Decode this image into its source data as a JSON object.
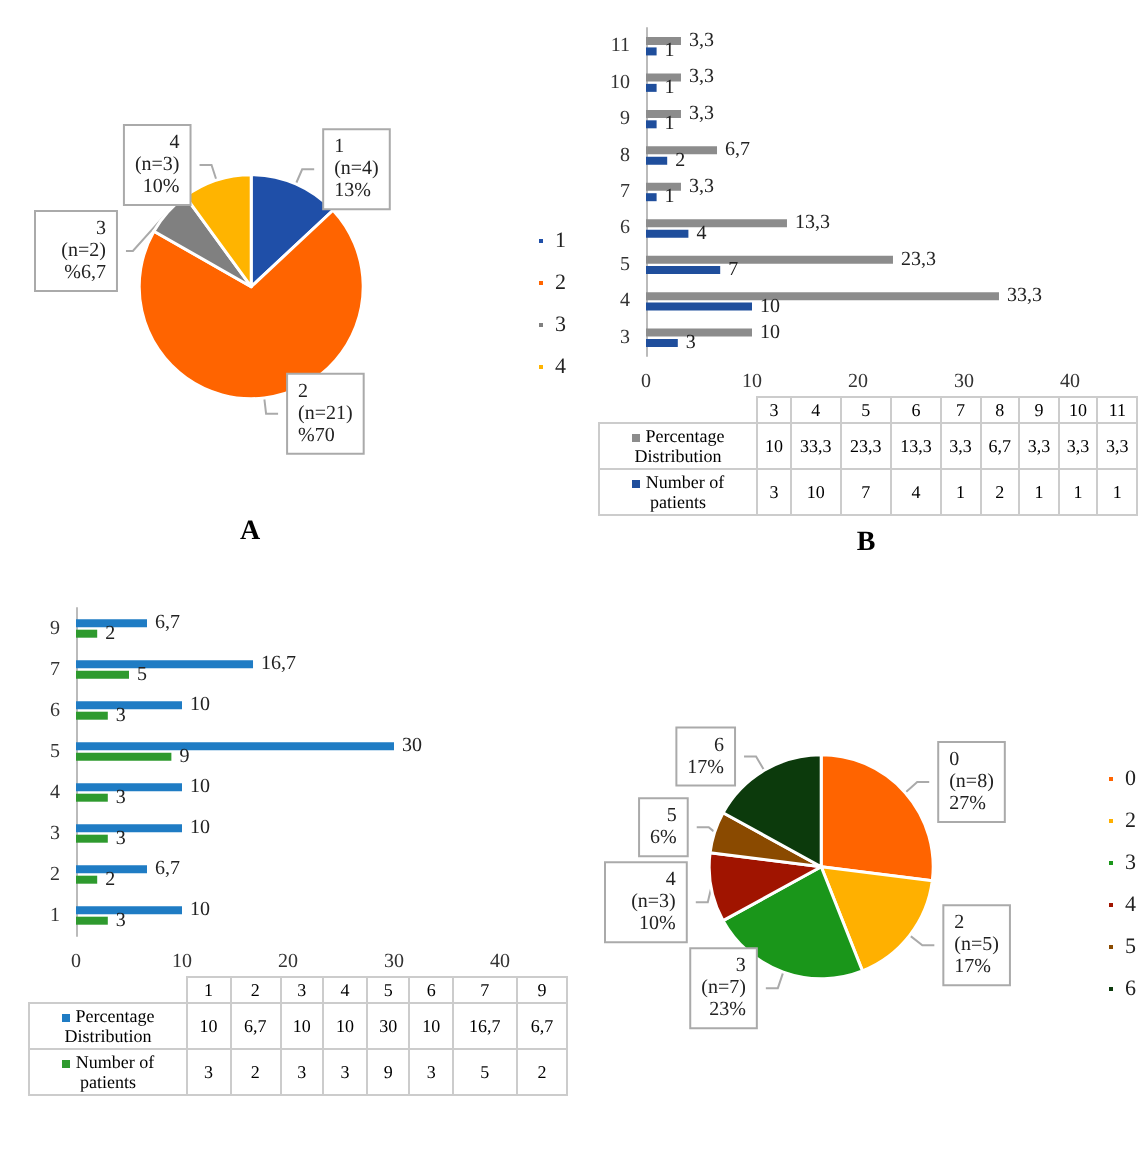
{
  "chart_data": [
    {
      "type": "pie",
      "title": "A",
      "categories": [
        "1",
        "2",
        "3",
        "4"
      ],
      "values": [
        13,
        70,
        6.7,
        10
      ],
      "colors": [
        "#1f4fa8",
        "#ff6400",
        "#808080",
        "#ffb400"
      ],
      "value_labels": [
        "(n=4)\n13%",
        "(n=21)\n%70",
        "(n=2)\n%6,7",
        "(n=3)\n10%"
      ],
      "legend": "right"
    },
    {
      "type": "bar",
      "title": "B",
      "orientation": "horizontal",
      "categories": [
        "11",
        "10",
        "9",
        "8",
        "7",
        "6",
        "5",
        "4",
        "3"
      ],
      "xlim": [
        0,
        40
      ],
      "xticks": [
        0,
        10,
        20,
        30,
        40
      ],
      "legend": "bottom",
      "series": [
        {
          "name": "Percentage Distribution",
          "color": "#8c8c8c",
          "values": [
            3.3,
            3.3,
            3.3,
            6.7,
            3.3,
            13.3,
            23.3,
            33.3,
            10
          ],
          "value_labels": [
            "3,3",
            "3,3",
            "3,3",
            "6,7",
            "3,3",
            "13,3",
            "23,3",
            "33,3",
            "10"
          ]
        },
        {
          "name": "Number of patients",
          "color": "#1f4e9c",
          "values": [
            1,
            1,
            1,
            2,
            1,
            4,
            7,
            10,
            3
          ],
          "value_labels": [
            "1",
            "1",
            "1",
            "2",
            "1",
            "4",
            "7",
            "10",
            "3"
          ]
        }
      ]
    },
    {
      "type": "bar",
      "orientation": "horizontal",
      "categories": [
        "9",
        "7",
        "6",
        "5",
        "4",
        "3",
        "2",
        "1"
      ],
      "xlim": [
        0,
        40
      ],
      "xticks": [
        0,
        10,
        20,
        30,
        40
      ],
      "legend": "bottom",
      "series": [
        {
          "name": "Percentage Distribution",
          "color": "#1f7cc4",
          "values": [
            6.7,
            16.7,
            10,
            30,
            10,
            10,
            6.7,
            10
          ],
          "value_labels": [
            "6,7",
            "16,7",
            "10",
            "30",
            "10",
            "10",
            "6,7",
            "10"
          ]
        },
        {
          "name": "Number of patients",
          "color": "#2e9a2e",
          "values": [
            2,
            5,
            3,
            9,
            3,
            3,
            2,
            3
          ],
          "value_labels": [
            "2",
            "5",
            "3",
            "9",
            "3",
            "3",
            "2",
            "3"
          ]
        }
      ]
    },
    {
      "type": "pie",
      "categories": [
        "0",
        "2",
        "3",
        "4",
        "5",
        "6"
      ],
      "values": [
        27,
        17,
        23,
        10,
        6,
        17
      ],
      "colors": [
        "#ff6400",
        "#ffb000",
        "#1a961a",
        "#a01400",
        "#8a4a00",
        "#0c3a0c"
      ],
      "value_labels": [
        "(n=8)\n27%",
        "(n=5)\n17%",
        "(n=7)\n23%",
        "(n=3)\n10%",
        "6%",
        "17%"
      ],
      "legend": "right"
    }
  ]
}
